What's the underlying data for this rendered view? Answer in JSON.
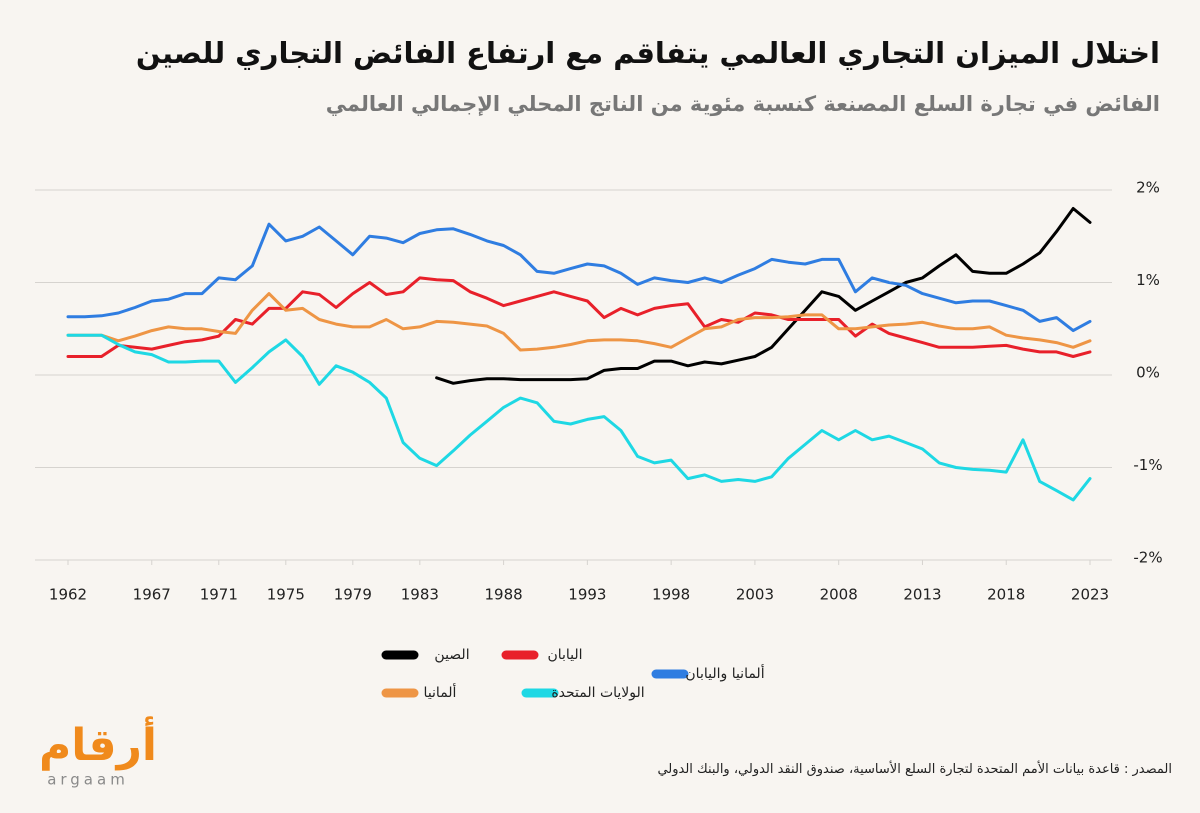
{
  "chart_data": {
    "type": "line",
    "title": "اختلال الميزان التجاري العالمي يتفاقم مع ارتفاع الفائض التجاري للصين",
    "subtitle": "الفائض في تجارة السلع المصنعة كنسبة مئوية من الناتج المحلي الإجمالي العالمي",
    "source": "المصدر : قاعدة بيانات الأمم المتحدة لتجارة السلع الأساسية، صندوق النقد الدولي، والبنك الدولي",
    "logo": {
      "name": "أرقام",
      "latin": "argaam"
    },
    "x": [
      1962,
      1963,
      1964,
      1965,
      1966,
      1967,
      1968,
      1969,
      1970,
      1971,
      1972,
      1973,
      1974,
      1975,
      1976,
      1977,
      1978,
      1979,
      1980,
      1981,
      1982,
      1983,
      1984,
      1985,
      1986,
      1987,
      1988,
      1989,
      1990,
      1991,
      1992,
      1993,
      1994,
      1995,
      1996,
      1997,
      1998,
      1999,
      2000,
      2001,
      2002,
      2003,
      2004,
      2005,
      2006,
      2007,
      2008,
      2009,
      2010,
      2011,
      2012,
      2013,
      2014,
      2015,
      2016,
      2017,
      2018,
      2019,
      2020,
      2021,
      2022,
      2023
    ],
    "xlim": [
      1962,
      2023
    ],
    "xticks": [
      1962,
      1967,
      1971,
      1975,
      1979,
      1983,
      1988,
      1993,
      1998,
      2003,
      2008,
      2013,
      2018,
      2023
    ],
    "ylim": [
      -2,
      2
    ],
    "yticks": [
      {
        "value": 2,
        "label": "2%"
      },
      {
        "value": 1,
        "label": "1%"
      },
      {
        "value": 0,
        "label": "0%"
      },
      {
        "value": -1,
        "label": "-1%"
      },
      {
        "value": -2,
        "label": "-2%"
      }
    ],
    "grid": true,
    "series": [
      {
        "name": "الصين",
        "color": "#000000",
        "values": [
          null,
          null,
          null,
          null,
          null,
          null,
          null,
          null,
          null,
          null,
          null,
          null,
          null,
          null,
          null,
          null,
          null,
          null,
          null,
          null,
          null,
          null,
          -0.03,
          -0.09,
          -0.06,
          -0.04,
          -0.04,
          -0.05,
          -0.05,
          -0.05,
          -0.05,
          -0.04,
          0.05,
          0.07,
          0.07,
          0.15,
          0.15,
          0.1,
          0.14,
          0.12,
          0.16,
          0.2,
          0.3,
          0.5,
          0.7,
          0.9,
          0.85,
          0.7,
          0.8,
          0.9,
          1.0,
          1.05,
          1.18,
          1.3,
          1.12,
          1.1,
          1.1,
          1.2,
          1.32,
          1.55,
          1.8,
          1.65
        ]
      },
      {
        "name": "اليابان",
        "color": "#e8202a",
        "values": [
          0.2,
          0.2,
          0.2,
          0.32,
          0.3,
          0.28,
          0.32,
          0.36,
          0.38,
          0.42,
          0.6,
          0.55,
          0.72,
          0.72,
          0.9,
          0.87,
          0.73,
          0.88,
          1.0,
          0.87,
          0.9,
          1.05,
          1.03,
          1.02,
          0.9,
          0.83,
          0.75,
          0.8,
          0.85,
          0.9,
          0.85,
          0.8,
          0.62,
          0.72,
          0.65,
          0.72,
          0.75,
          0.77,
          0.52,
          0.6,
          0.57,
          0.67,
          0.65,
          0.6,
          0.6,
          0.6,
          0.6,
          0.42,
          0.55,
          0.45,
          0.4,
          0.35,
          0.3,
          0.3,
          0.3,
          0.31,
          0.32,
          0.28,
          0.25,
          0.25,
          0.2,
          0.25
        ]
      },
      {
        "name": "ألمانيا واليابان",
        "color": "#2f7de1",
        "values": [
          0.63,
          0.63,
          0.64,
          0.67,
          0.73,
          0.8,
          0.82,
          0.88,
          0.88,
          1.05,
          1.03,
          1.18,
          1.63,
          1.45,
          1.5,
          1.6,
          1.45,
          1.3,
          1.5,
          1.48,
          1.43,
          1.53,
          1.57,
          1.58,
          1.52,
          1.45,
          1.4,
          1.3,
          1.12,
          1.1,
          1.15,
          1.2,
          1.18,
          1.1,
          0.98,
          1.05,
          1.02,
          1.0,
          1.05,
          1.0,
          1.08,
          1.15,
          1.25,
          1.22,
          1.2,
          1.25,
          1.25,
          0.9,
          1.05,
          1.0,
          0.97,
          0.88,
          0.83,
          0.78,
          0.8,
          0.8,
          0.75,
          0.7,
          0.58,
          0.62,
          0.48,
          0.58
        ]
      },
      {
        "name": "ألمانيا",
        "color": "#ee9545",
        "values": [
          0.43,
          0.43,
          0.43,
          0.37,
          0.42,
          0.48,
          0.52,
          0.5,
          0.5,
          0.47,
          0.45,
          0.7,
          0.88,
          0.7,
          0.72,
          0.6,
          0.55,
          0.52,
          0.52,
          0.6,
          0.5,
          0.52,
          0.58,
          0.57,
          0.55,
          0.53,
          0.45,
          0.27,
          0.28,
          0.3,
          0.33,
          0.37,
          0.38,
          0.38,
          0.37,
          0.34,
          0.3,
          0.4,
          0.5,
          0.52,
          0.6,
          0.62,
          0.62,
          0.63,
          0.65,
          0.65,
          0.5,
          0.5,
          0.52,
          0.54,
          0.55,
          0.57,
          0.53,
          0.5,
          0.5,
          0.52,
          0.43,
          0.4,
          0.38,
          0.35,
          0.3,
          0.37
        ]
      },
      {
        "name": "الولايات المتحدة",
        "color": "#1ed8e4",
        "values": [
          0.43,
          0.43,
          0.43,
          0.33,
          0.25,
          0.22,
          0.14,
          0.14,
          0.15,
          0.15,
          -0.08,
          0.08,
          0.25,
          0.38,
          0.2,
          -0.1,
          0.1,
          0.03,
          -0.08,
          -0.25,
          -0.73,
          -0.9,
          -0.98,
          -0.82,
          -0.65,
          -0.5,
          -0.35,
          -0.25,
          -0.3,
          -0.5,
          -0.53,
          -0.48,
          -0.45,
          -0.6,
          -0.88,
          -0.95,
          -0.92,
          -1.12,
          -1.08,
          -1.15,
          -1.13,
          -1.15,
          -1.1,
          -0.9,
          -0.75,
          -0.6,
          -0.7,
          -0.6,
          -0.7,
          -0.66,
          -0.73,
          -0.8,
          -0.95,
          -1.0,
          -1.02,
          -1.03,
          -1.05,
          -0.7,
          -1.15,
          -1.25,
          -1.35,
          -1.12
        ]
      }
    ]
  }
}
